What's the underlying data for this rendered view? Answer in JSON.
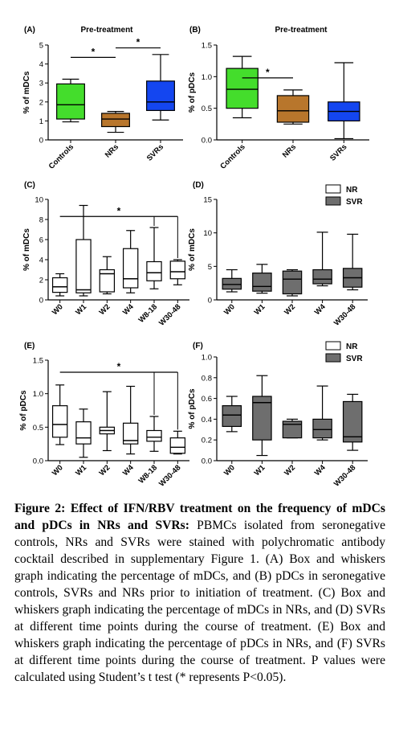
{
  "chart_data": [
    {
      "id": "A",
      "panel_label": "(A)",
      "type": "box",
      "title": "Pre-treatment",
      "ylabel": "% of mDCs",
      "ylim": [
        0,
        5
      ],
      "yticks": [
        0,
        1,
        2,
        3,
        4,
        5
      ],
      "categories": [
        "Controls",
        "NRs",
        "SVRs"
      ],
      "boxes": [
        {
          "min": 0.95,
          "q1": 1.1,
          "median": 1.85,
          "q3": 2.95,
          "max": 3.2,
          "color": "#44dd2c"
        },
        {
          "min": 0.4,
          "q1": 0.7,
          "median": 1.1,
          "q3": 1.4,
          "max": 1.5,
          "color": "#b8762c"
        },
        {
          "min": 1.05,
          "q1": 1.55,
          "median": 2.0,
          "q3": 3.1,
          "max": 4.5,
          "color": "#1446f0"
        }
      ],
      "significance": [
        {
          "from": 0,
          "to": 1,
          "y": 4.35,
          "label": "*"
        },
        {
          "from": 1,
          "to": 2,
          "y": 4.85,
          "label": "*"
        }
      ]
    },
    {
      "id": "B",
      "panel_label": "(B)",
      "type": "box",
      "title": "Pre-treatment",
      "ylabel": "% of pDCs",
      "ylim": [
        0,
        1.5
      ],
      "yticks": [
        0,
        0.5,
        1.0,
        1.5
      ],
      "yticklabels": [
        "0.0",
        "0.5",
        "1.0",
        "1.5"
      ],
      "categories": [
        "Controls",
        "NRs",
        "SVRs"
      ],
      "boxes": [
        {
          "min": 0.35,
          "q1": 0.5,
          "median": 0.8,
          "q3": 1.13,
          "max": 1.32,
          "color": "#44dd2c"
        },
        {
          "min": 0.25,
          "q1": 0.28,
          "median": 0.46,
          "q3": 0.7,
          "max": 0.79,
          "color": "#b8762c"
        },
        {
          "min": 0.02,
          "q1": 0.3,
          "median": 0.45,
          "q3": 0.6,
          "max": 1.22,
          "color": "#1446f0"
        }
      ],
      "significance": [
        {
          "from": 0,
          "to": 1,
          "y": 0.98,
          "label": "*"
        }
      ]
    },
    {
      "id": "C",
      "panel_label": "(C)",
      "type": "box",
      "ylabel": "% of mDCs",
      "ylim": [
        0,
        10
      ],
      "yticks": [
        0,
        2,
        4,
        6,
        8,
        10
      ],
      "categories": [
        "W0",
        "W1",
        "W2",
        "W4",
        "W8-18",
        "W30-48"
      ],
      "legend": [
        {
          "label": "NR",
          "color": "#ffffff"
        },
        {
          "label": "SVR",
          "color": "#6e6e6e"
        }
      ],
      "boxes": [
        {
          "min": 0.4,
          "q1": 0.75,
          "median": 1.3,
          "q3": 2.2,
          "max": 2.6,
          "color": "#ffffff"
        },
        {
          "min": 0.4,
          "q1": 0.7,
          "median": 1.0,
          "q3": 6.0,
          "max": 9.4,
          "color": "#ffffff"
        },
        {
          "min": 0.6,
          "q1": 0.8,
          "median": 2.6,
          "q3": 3.0,
          "max": 4.3,
          "color": "#ffffff"
        },
        {
          "min": 0.7,
          "q1": 1.2,
          "median": 2.1,
          "q3": 5.1,
          "max": 6.9,
          "color": "#ffffff"
        },
        {
          "min": 1.1,
          "q1": 1.9,
          "median": 2.7,
          "q3": 3.8,
          "max": 7.2,
          "color": "#ffffff"
        },
        {
          "min": 1.5,
          "q1": 2.1,
          "median": 2.8,
          "q3": 3.85,
          "max": 4.0,
          "color": "#ffffff"
        }
      ],
      "significance": [
        {
          "from": 0,
          "to": 5,
          "y": 8.3,
          "label": "*"
        }
      ]
    },
    {
      "id": "D",
      "panel_label": "(D)",
      "type": "box",
      "ylabel": "% of mDCs",
      "ylim": [
        0,
        15
      ],
      "yticks": [
        0,
        5,
        10,
        15
      ],
      "categories": [
        "W0",
        "W1",
        "W2",
        "W4",
        "W30-48"
      ],
      "boxes": [
        {
          "min": 1.2,
          "q1": 1.6,
          "median": 2.3,
          "q3": 3.2,
          "max": 4.5,
          "color": "#6e6e6e"
        },
        {
          "min": 1.0,
          "q1": 1.3,
          "median": 2.0,
          "q3": 4.0,
          "max": 5.3,
          "color": "#6e6e6e"
        },
        {
          "min": 0.6,
          "q1": 0.9,
          "median": 3.1,
          "q3": 4.3,
          "max": 4.5,
          "color": "#6e6e6e"
        },
        {
          "min": 2.1,
          "q1": 2.4,
          "median": 3.1,
          "q3": 4.5,
          "max": 10.1,
          "color": "#6e6e6e"
        },
        {
          "min": 1.5,
          "q1": 1.9,
          "median": 3.3,
          "q3": 4.7,
          "max": 9.8,
          "color": "#6e6e6e"
        }
      ]
    },
    {
      "id": "E",
      "panel_label": "(E)",
      "type": "box",
      "ylabel": "% of pDCs",
      "ylim": [
        0,
        1.5
      ],
      "yticks": [
        0,
        0.5,
        1.0,
        1.5
      ],
      "yticklabels": [
        "0.0",
        "0.5",
        "1.0",
        "1.5"
      ],
      "categories": [
        "W0",
        "W1",
        "W2",
        "W4",
        "W8-18",
        "W30-48"
      ],
      "legend": [
        {
          "label": "NR",
          "color": "#ffffff"
        },
        {
          "label": "SVR",
          "color": "#6e6e6e"
        }
      ],
      "boxes": [
        {
          "min": 0.24,
          "q1": 0.35,
          "median": 0.54,
          "q3": 0.82,
          "max": 1.13,
          "color": "#ffffff"
        },
        {
          "min": 0.05,
          "q1": 0.25,
          "median": 0.34,
          "q3": 0.58,
          "max": 0.77,
          "color": "#ffffff"
        },
        {
          "min": 0.15,
          "q1": 0.4,
          "median": 0.45,
          "q3": 0.5,
          "max": 1.03,
          "color": "#ffffff"
        },
        {
          "min": 0.1,
          "q1": 0.25,
          "median": 0.3,
          "q3": 0.56,
          "max": 1.11,
          "color": "#ffffff"
        },
        {
          "min": 0.14,
          "q1": 0.29,
          "median": 0.35,
          "q3": 0.45,
          "max": 0.66,
          "color": "#ffffff"
        },
        {
          "min": 0.1,
          "q1": 0.11,
          "median": 0.2,
          "q3": 0.34,
          "max": 0.44,
          "color": "#ffffff"
        }
      ],
      "significance": [
        {
          "from": 0,
          "to": 5,
          "y": 1.32,
          "label": "*"
        }
      ]
    },
    {
      "id": "F",
      "panel_label": "(F)",
      "type": "box",
      "ylabel": "% of pDCs",
      "ylim": [
        0,
        1.0
      ],
      "yticks": [
        0,
        0.2,
        0.4,
        0.6,
        0.8,
        1.0
      ],
      "yticklabels": [
        "0.0",
        "0.2",
        "0.4",
        "0.6",
        "0.8",
        "1.0"
      ],
      "categories": [
        "W0",
        "W1",
        "W2",
        "W4",
        "W30-48"
      ],
      "boxes": [
        {
          "min": 0.28,
          "q1": 0.33,
          "median": 0.44,
          "q3": 0.53,
          "max": 0.62,
          "color": "#6e6e6e"
        },
        {
          "min": 0.05,
          "q1": 0.2,
          "median": 0.56,
          "q3": 0.62,
          "max": 0.82,
          "color": "#6e6e6e"
        },
        {
          "min": 0.22,
          "q1": 0.22,
          "median": 0.35,
          "q3": 0.38,
          "max": 0.4,
          "color": "#6e6e6e"
        },
        {
          "min": 0.2,
          "q1": 0.22,
          "median": 0.3,
          "q3": 0.4,
          "max": 0.72,
          "color": "#6e6e6e"
        },
        {
          "min": 0.1,
          "q1": 0.18,
          "median": 0.23,
          "q3": 0.57,
          "max": 0.64,
          "color": "#6e6e6e"
        }
      ]
    }
  ],
  "caption": {
    "label": "Figure 2: Effect of IFN/RBV treatment on the frequency of mDCs and pDCs in NRs and SVRs:",
    "text": " PBMCs isolated from seronegative controls, NRs and SVRs were stained with polychromatic antibody cocktail described in supplementary Figure 1. (A) Box and whiskers graph indicating the percentage of mDCs, and (B) pDCs in seronegative controls, SVRs and NRs prior to initiation of treatment. (C) Box and whiskers graph indicating the percentage of mDCs in NRs, and (D) SVRs at different time points during the course of treatment. (E) Box and whiskers graph indicating the percentage of pDCs in NRs, and (F) SVRs at different time points during the course of treatment. P values were calculated using Student’s t test (* represents P<0.05)."
  }
}
